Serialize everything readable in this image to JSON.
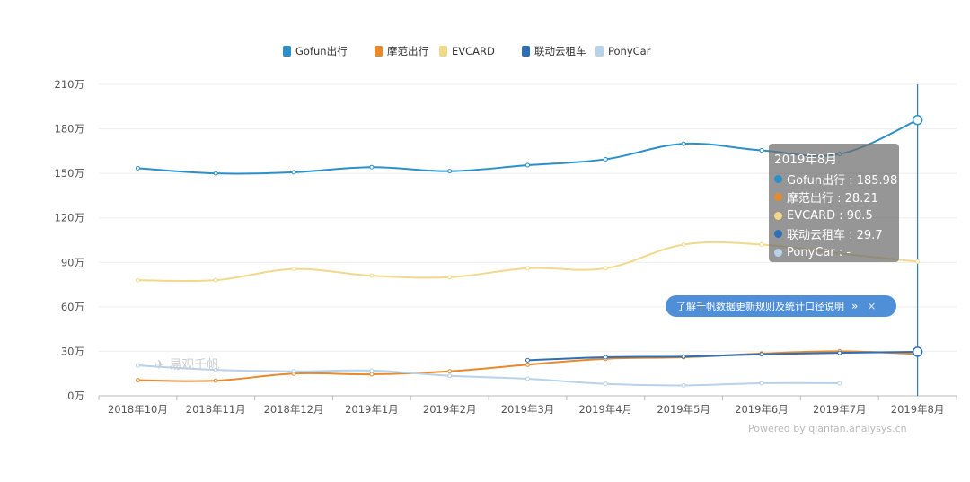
{
  "chart_data": {
    "type": "line",
    "categories": [
      "2018年10月",
      "2018年11月",
      "2018年12月",
      "2019年1月",
      "2019年2月",
      "2019年3月",
      "2019年4月",
      "2019年5月",
      "2019年6月",
      "2019年7月",
      "2019年8月"
    ],
    "yticks": [
      "0万",
      "30万",
      "60万",
      "90万",
      "120万",
      "150万",
      "180万",
      "210万"
    ],
    "ylim": [
      0,
      210
    ],
    "series": [
      {
        "name": "Gofun出行",
        "color": "#2b8fc9",
        "values": [
          153.5,
          150.0,
          150.8,
          154.2,
          151.5,
          155.5,
          159.5,
          170.0,
          165.5,
          163.0,
          185.98
        ]
      },
      {
        "name": "摩范出行",
        "color": "#e8892c",
        "values": [
          10.5,
          10.2,
          15.0,
          14.5,
          16.5,
          21.0,
          25.0,
          26.0,
          28.5,
          30.0,
          28.21
        ]
      },
      {
        "name": "EVCARD",
        "color": "#f2d98a",
        "values": [
          78.0,
          78.0,
          85.5,
          81.0,
          80.0,
          86.0,
          86.0,
          102.0,
          102.0,
          96.0,
          90.5
        ]
      },
      {
        "name": "联动云租车",
        "color": "#2f6fb6",
        "values": [
          null,
          null,
          null,
          null,
          null,
          24.0,
          26.0,
          26.5,
          28.0,
          29.0,
          29.7
        ]
      },
      {
        "name": "PonyCar",
        "color": "#b8d2ea",
        "values": [
          20.5,
          17.5,
          16.5,
          17.0,
          13.5,
          11.5,
          8.0,
          7.0,
          8.5,
          8.5,
          null
        ]
      }
    ],
    "legend_position": "top",
    "tooltip": {
      "title": "2019年8月",
      "rows": [
        {
          "label": "Gofun出行 : 185.98",
          "color": "#2b8fc9"
        },
        {
          "label": "摩范出行 : 28.21",
          "color": "#e8892c"
        },
        {
          "label": "EVCARD : 90.5",
          "color": "#f2d98a"
        },
        {
          "label": "联动云租车 : 29.7",
          "color": "#2f6fb6"
        },
        {
          "label": "PonyCar : -",
          "color": "#b8d2ea"
        }
      ]
    },
    "highlight_category": "2019年8月"
  },
  "info_pill": {
    "text": "了解千帆数据更新规则及统计口径说明",
    "chevron": "»",
    "close": "×"
  },
  "powered_by": "Powered by qianfan.analysys.cn",
  "watermark": "易观千帆"
}
